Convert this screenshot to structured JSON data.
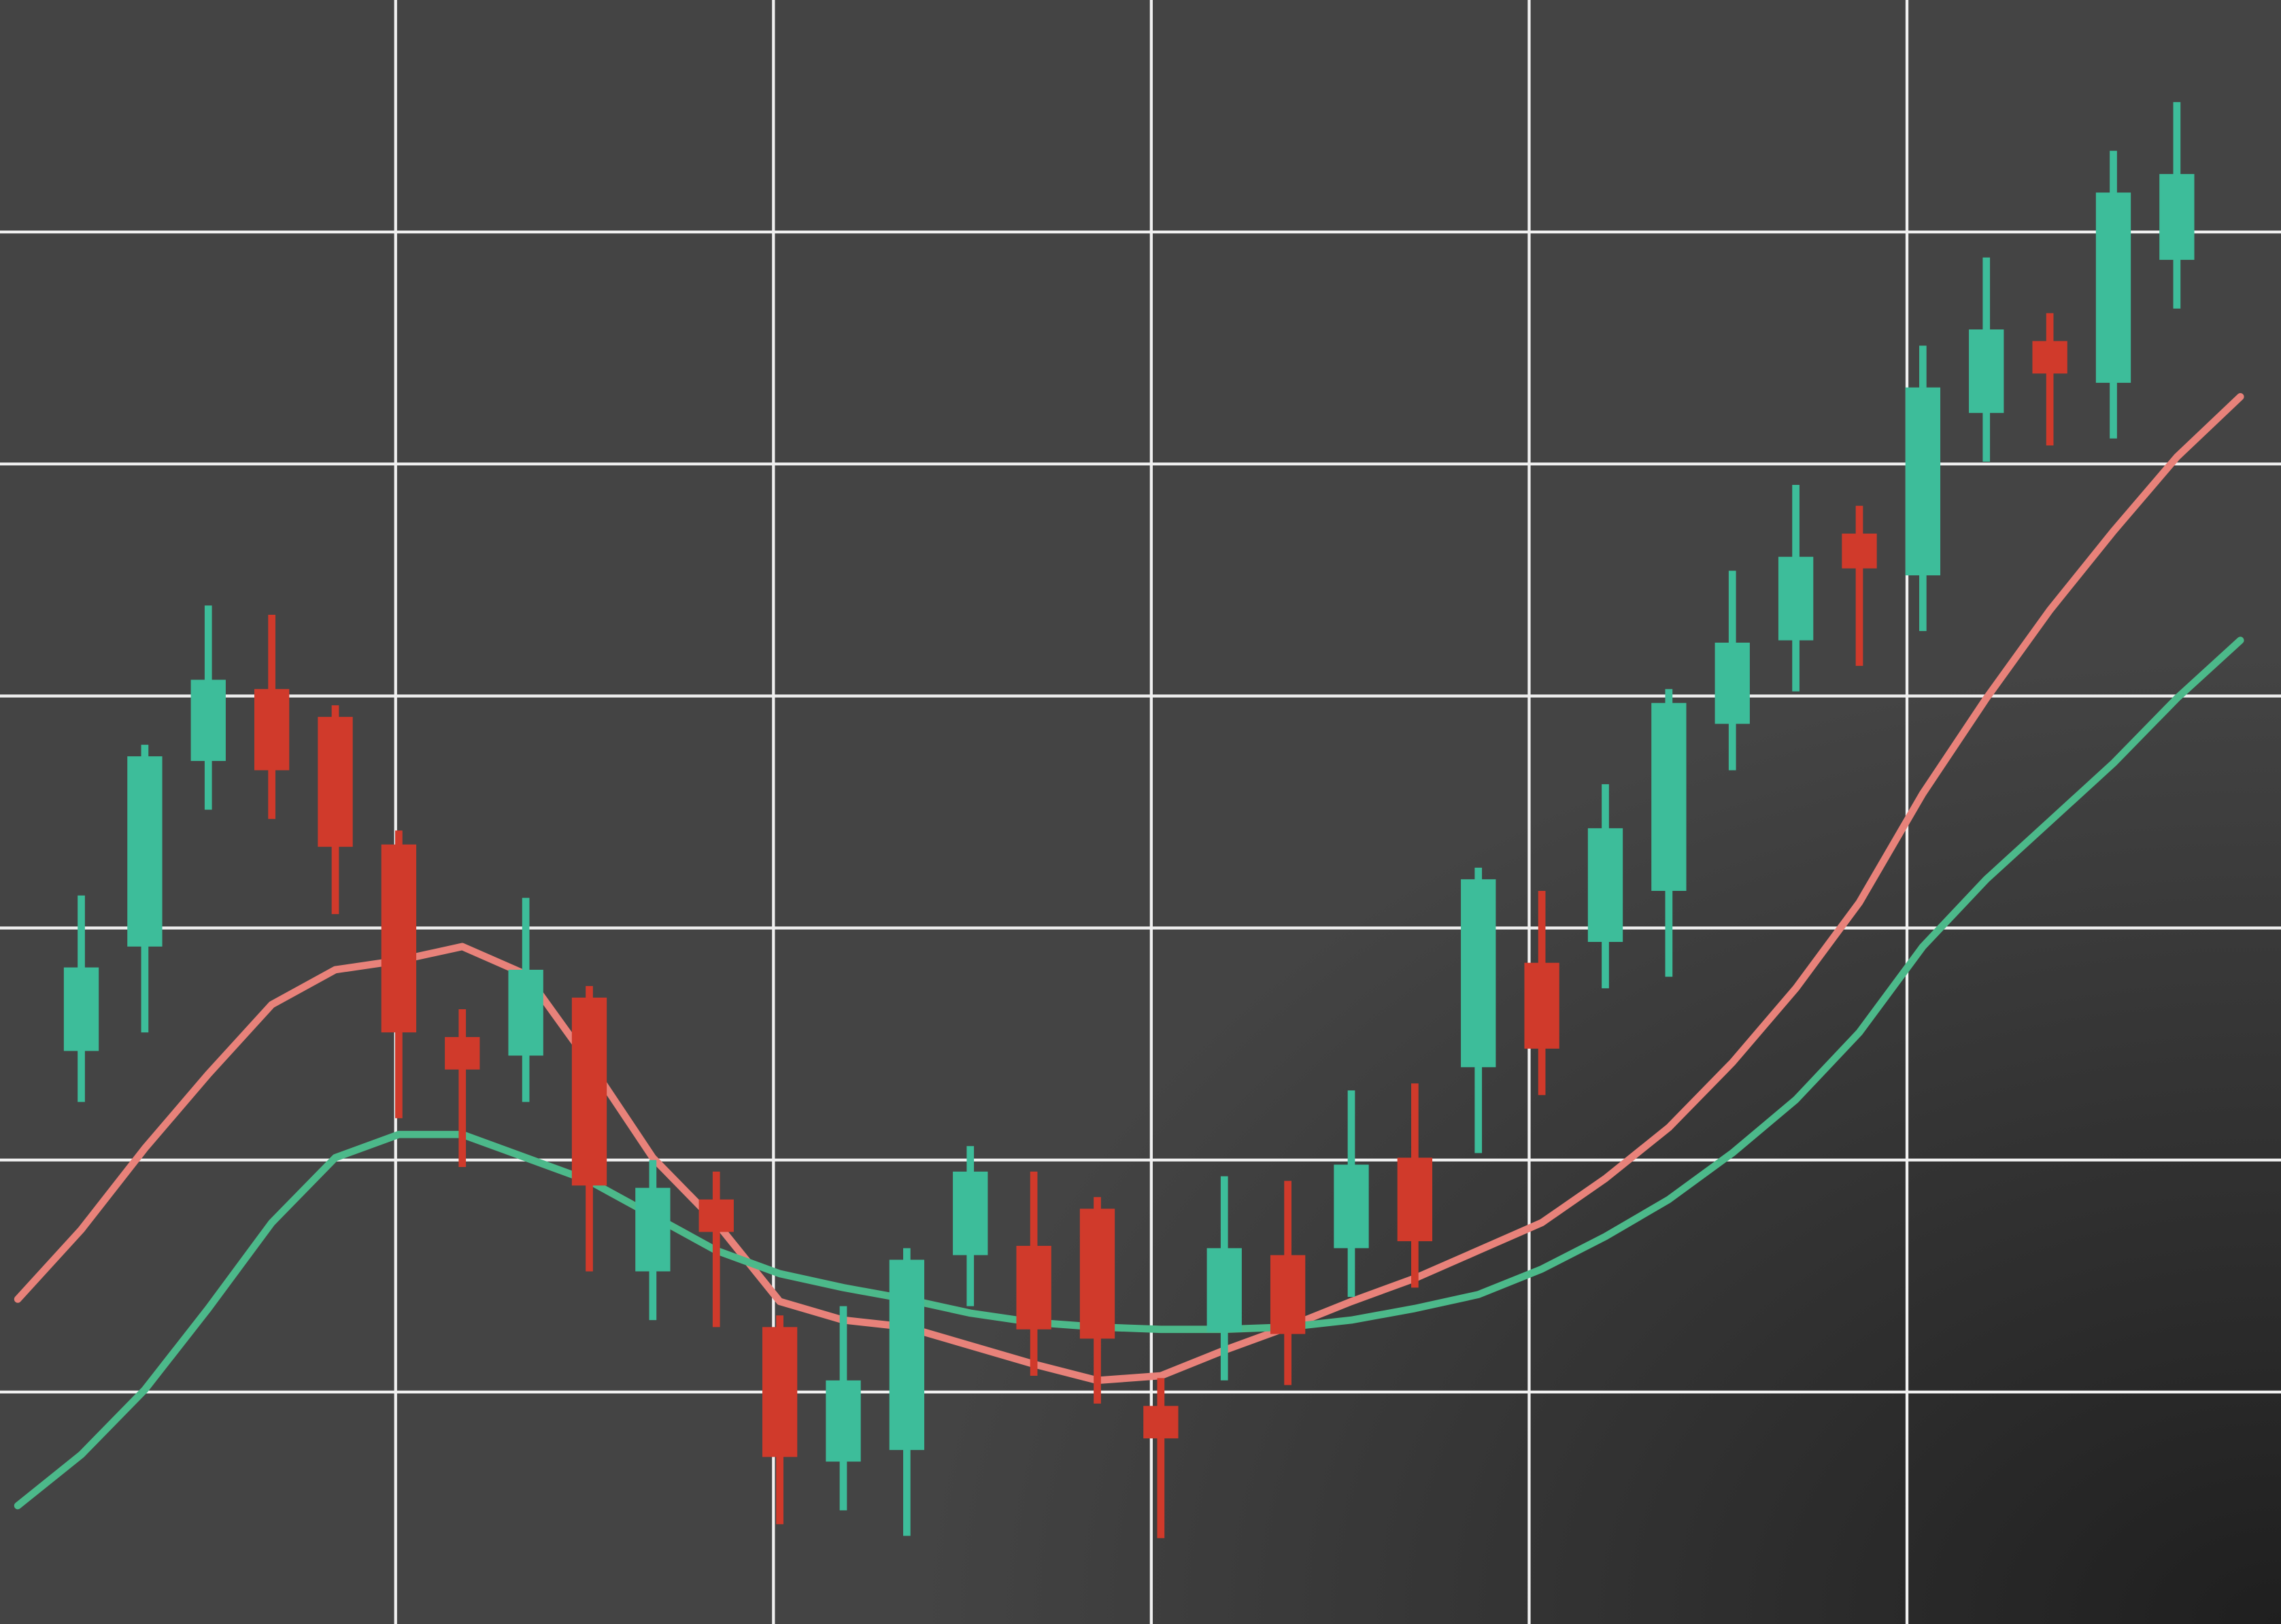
{
  "chart_data": {
    "type": "candlestick",
    "x": [
      1,
      2,
      3,
      4,
      5,
      6,
      7,
      8,
      9,
      10,
      11,
      12,
      13,
      14,
      15,
      16,
      17,
      18,
      19,
      20,
      21,
      22,
      23,
      24,
      25,
      26,
      27,
      28,
      29,
      30,
      31,
      32,
      33,
      34
    ],
    "open": [
      2.47,
      2.92,
      3.72,
      4.03,
      3.91,
      3.36,
      2.53,
      2.45,
      2.7,
      1.52,
      1.83,
      1.28,
      0.7,
      0.75,
      1.59,
      1.63,
      1.79,
      0.94,
      1.26,
      1.59,
      1.62,
      2.01,
      2.4,
      2.85,
      2.94,
      3.16,
      3.88,
      4.24,
      4.7,
      4.52,
      5.22,
      5.53,
      5.35,
      5.88
    ],
    "high": [
      3.14,
      3.79,
      4.39,
      4.35,
      3.96,
      3.42,
      2.65,
      3.13,
      2.75,
      2.0,
      1.95,
      1.33,
      1.37,
      1.62,
      2.06,
      1.95,
      1.84,
      1.06,
      1.93,
      1.91,
      2.3,
      2.33,
      3.26,
      3.16,
      3.62,
      4.03,
      4.54,
      4.91,
      4.82,
      5.51,
      5.89,
      5.65,
      6.35,
      6.56
    ],
    "low": [
      2.25,
      2.55,
      3.51,
      3.47,
      3.06,
      2.18,
      1.97,
      2.25,
      1.52,
      1.31,
      1.28,
      0.43,
      0.49,
      0.38,
      1.37,
      1.07,
      0.95,
      0.37,
      1.05,
      1.03,
      1.41,
      1.45,
      2.03,
      2.28,
      2.74,
      2.79,
      3.68,
      4.02,
      4.13,
      4.28,
      5.01,
      5.08,
      5.11,
      5.67
    ],
    "close": [
      2.83,
      3.74,
      4.07,
      3.68,
      3.35,
      2.55,
      2.39,
      2.82,
      1.89,
      1.88,
      1.69,
      0.72,
      1.05,
      1.57,
      1.95,
      1.27,
      1.23,
      0.8,
      1.62,
      1.25,
      1.98,
      1.65,
      3.21,
      2.48,
      3.43,
      3.97,
      4.23,
      4.6,
      4.55,
      5.33,
      5.58,
      5.39,
      6.17,
      6.25
    ],
    "up_color": "#3dbd9a",
    "down_color": "#d03a2b",
    "lines": [
      {
        "color": "#e8827a",
        "x": [
          0,
          1,
          2,
          3,
          4,
          5,
          6,
          7,
          8,
          9,
          10,
          11,
          12,
          13,
          14,
          15,
          16,
          17,
          18,
          19,
          20,
          21,
          22,
          23,
          24,
          25,
          26,
          27,
          28,
          29,
          30,
          31,
          32,
          33,
          34,
          35
        ],
        "values": [
          1.4,
          1.7,
          2.05,
          2.37,
          2.67,
          2.82,
          2.86,
          2.92,
          2.8,
          2.42,
          2.01,
          1.73,
          1.39,
          1.31,
          1.28,
          1.2,
          1.12,
          1.05,
          1.07,
          1.18,
          1.28,
          1.39,
          1.49,
          1.61,
          1.73,
          1.92,
          2.14,
          2.42,
          2.74,
          3.11,
          3.58,
          3.99,
          4.37,
          4.71,
          5.03,
          5.29
        ]
      },
      {
        "color": "#4cb98a",
        "x": [
          0,
          1,
          2,
          3,
          4,
          5,
          6,
          7,
          8,
          9,
          10,
          11,
          12,
          13,
          14,
          15,
          16,
          17,
          18,
          19,
          20,
          21,
          22,
          23,
          24,
          25,
          26,
          27,
          28,
          29,
          30,
          31,
          32,
          33,
          34,
          35
        ],
        "values": [
          0.51,
          0.73,
          1.01,
          1.36,
          1.73,
          2.01,
          2.11,
          2.11,
          2.01,
          1.91,
          1.76,
          1.61,
          1.51,
          1.45,
          1.4,
          1.34,
          1.3,
          1.28,
          1.27,
          1.27,
          1.28,
          1.31,
          1.36,
          1.42,
          1.53,
          1.67,
          1.83,
          2.03,
          2.26,
          2.55,
          2.92,
          3.21,
          3.46,
          3.71,
          3.99,
          4.24
        ]
      }
    ],
    "xlim": [
      -0.28,
      35.64
    ],
    "ylim": [
      0,
      7
    ],
    "xticks": [
      5.95,
      11.9,
      17.85,
      23.8,
      29.75
    ],
    "yticks": [
      1,
      2,
      3,
      4,
      5,
      6
    ],
    "grid": true
  }
}
